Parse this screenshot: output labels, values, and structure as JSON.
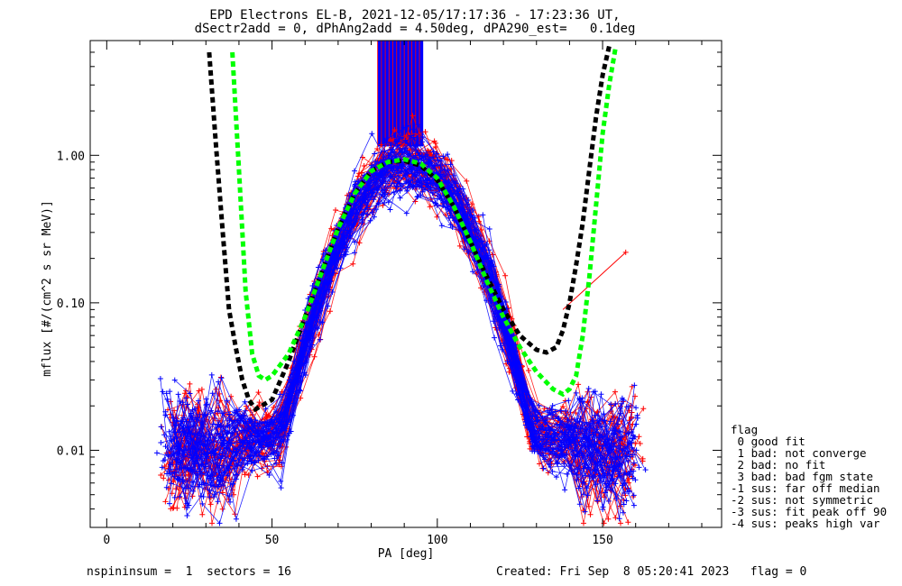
{
  "chart_data": {
    "type": "scatter",
    "title": "EPD Electrons EL-B, 2021-12-05/17:17:36 - 17:23:36 UT,",
    "subtitle": "dSectr2add = 0, dPhAng2add = 4.50deg, dPA290_est=   0.1deg",
    "xlabel": "PA [deg]",
    "ylabel": "mflux [#/(cm^2 s sr MeV)]",
    "xlim": [
      -5,
      186
    ],
    "ylim": [
      0.003,
      6.0
    ],
    "yscale": "log",
    "x_ticks": [
      0,
      50,
      100,
      150
    ],
    "x_tick_labels": [
      "0",
      "50",
      "100",
      "150"
    ],
    "y_ticks": [
      0.01,
      0.1,
      1.0
    ],
    "y_tick_labels": [
      "0.01",
      "0.10",
      "1.00"
    ],
    "series": [
      {
        "color": "#0000ff",
        "style": "thin lines with + markers",
        "note_sectors": "good fits"
      },
      {
        "color": "#ff0000",
        "style": "thin lines with + markers"
      },
      {
        "color": "#000000",
        "style": "thick dashed"
      },
      {
        "color": "#00ff00",
        "style": "thick dashed"
      }
    ],
    "black_fit": {
      "x": [
        31,
        33,
        35,
        37,
        39,
        41,
        43,
        45,
        50,
        55,
        60,
        65,
        70,
        75,
        80,
        85,
        90,
        95,
        100,
        105,
        110,
        115,
        120,
        125,
        130,
        133,
        136,
        138,
        140,
        142,
        144,
        146,
        148,
        150,
        152
      ],
      "y": [
        5.0,
        1.2,
        0.32,
        0.09,
        0.05,
        0.03,
        0.022,
        0.019,
        0.022,
        0.04,
        0.08,
        0.16,
        0.32,
        0.55,
        0.78,
        0.9,
        0.92,
        0.85,
        0.68,
        0.45,
        0.26,
        0.15,
        0.09,
        0.06,
        0.048,
        0.046,
        0.05,
        0.065,
        0.1,
        0.18,
        0.35,
        0.8,
        1.8,
        3.5,
        5.5
      ]
    },
    "green_fit": {
      "x": [
        38,
        40,
        42,
        44,
        46,
        48,
        50,
        55,
        60,
        65,
        70,
        75,
        80,
        85,
        90,
        95,
        100,
        105,
        110,
        115,
        120,
        125,
        130,
        135,
        138,
        140,
        142,
        144,
        146,
        148,
        150,
        152,
        154
      ],
      "y": [
        5.0,
        0.8,
        0.12,
        0.045,
        0.032,
        0.03,
        0.032,
        0.045,
        0.08,
        0.16,
        0.32,
        0.55,
        0.78,
        0.9,
        0.94,
        0.88,
        0.7,
        0.45,
        0.26,
        0.14,
        0.08,
        0.05,
        0.034,
        0.026,
        0.024,
        0.026,
        0.032,
        0.06,
        0.15,
        0.45,
        1.4,
        3.0,
        5.5
      ]
    },
    "annotation_point": {
      "x": 157,
      "y": 0.22,
      "from_x": 138,
      "from_y": 0.09
    }
  },
  "legend": {
    "title": "flag",
    "items": [
      " 0 good fit",
      " 1 bad: not converge",
      " 2 bad: no fit",
      " 3 bad: bad fgm state",
      "-1 sus: far off median",
      "-2 sus: not symmetric",
      "-3 sus: fit peak off 90",
      "-4 sus: peaks high var"
    ]
  },
  "footer": {
    "left": "nspininsum =  1  sectors = 16",
    "right": "Created: Fri Sep  8 05:20:41 2023   flag = 0"
  },
  "colors": {
    "blue": "#0000ff",
    "red": "#ff0000",
    "black": "#000000",
    "green": "#00ff00"
  }
}
